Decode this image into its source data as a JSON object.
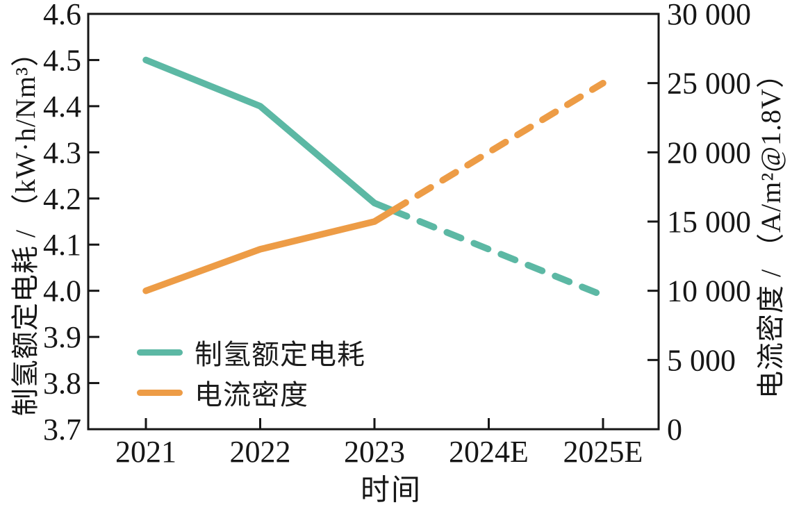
{
  "figure": {
    "background": "#ffffff"
  },
  "chart_data": {
    "type": "line",
    "title": "",
    "categories": [
      "2021",
      "2022",
      "2023",
      "2024E",
      "2025E"
    ],
    "x_axis": {
      "label": "时间"
    },
    "left_axis": {
      "label": "制氢额定电耗 / （kW·h/Nm³）",
      "min": 3.7,
      "max": 4.6,
      "step": 0.1,
      "tick_labels": [
        "3.7",
        "3.8",
        "3.9",
        "4.0",
        "4.1",
        "4.2",
        "4.3",
        "4.4",
        "4.5",
        "4.6"
      ]
    },
    "right_axis": {
      "label": "电流密度 / （A/m²@1.8V）",
      "min": 0,
      "max": 30000,
      "step": 5000,
      "tick_labels": [
        "0",
        "5 000",
        "10 000",
        "15 000",
        "20 000",
        "25 000",
        "30 000"
      ]
    },
    "series": [
      {
        "name": "制氢额定电耗",
        "axis": "left",
        "color": "#5cb8a4",
        "values": [
          4.5,
          4.4,
          4.19,
          4.09,
          3.99
        ],
        "line_style": "solid then dashed after crossover (estimates)"
      },
      {
        "name": "电流密度",
        "axis": "right",
        "color": "#ed9c46",
        "values": [
          10000,
          13000,
          15000,
          20000,
          25000
        ],
        "line_style": "solid then dashed after crossover (estimates)"
      }
    ],
    "grid": false,
    "legend_position": "inside lower-left"
  },
  "legend": {
    "items": [
      {
        "label": "制氢额定电耗",
        "color": "#5cb8a4"
      },
      {
        "label": "电流密度",
        "color": "#ed9c46"
      }
    ]
  },
  "axis_color": "#161616"
}
